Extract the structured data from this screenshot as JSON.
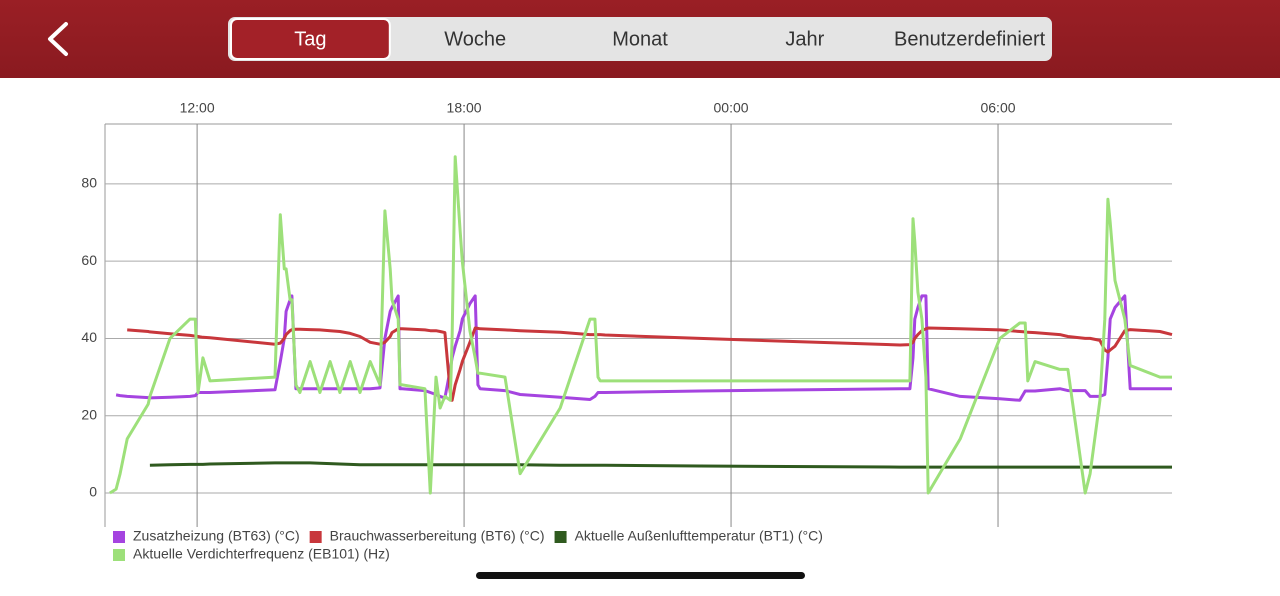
{
  "header": {
    "tabs": [
      {
        "label": "Tag",
        "selected": true
      },
      {
        "label": "Woche",
        "selected": false
      },
      {
        "label": "Monat",
        "selected": false
      },
      {
        "label": "Jahr",
        "selected": false
      },
      {
        "label": "Benutzerdefiniert",
        "selected": false
      }
    ]
  },
  "chart_data": {
    "type": "line",
    "grid": true,
    "legend": "bottom-left",
    "x": [
      10.04,
      10.18,
      10.27,
      10.43,
      10.9,
      10.94,
      11.39,
      11.84,
      11.96,
      12.02,
      12.07,
      12.13,
      12.29,
      13.75,
      13.87,
      13.96,
      14.0,
      14.09,
      14.13,
      14.22,
      14.31,
      14.54,
      14.76,
      14.99,
      15.21,
      15.44,
      15.66,
      15.89,
      16.11,
      16.22,
      16.34,
      16.38,
      16.52,
      16.56,
      16.61,
      17.12,
      17.24,
      17.37,
      17.46,
      17.57,
      17.69,
      17.73,
      17.8,
      17.91,
      17.96,
      18.13,
      18.25,
      18.31,
      18.36,
      18.92,
      19.26,
      20.16,
      20.83,
      20.94,
      21.01,
      21.06,
      21.17,
      23.3,
      27.8,
      28.02,
      28.09,
      28.13,
      28.2,
      28.29,
      28.38,
      28.43,
      29.15,
      30.04,
      30.49,
      30.61,
      30.67,
      30.83,
      31.39,
      31.57,
      31.96,
      32.07,
      32.29,
      32.4,
      32.47,
      32.52,
      32.63,
      32.85,
      32.97,
      33.64,
      33.91
    ],
    "xlim": [
      9.93,
      33.91
    ],
    "xticks": [
      {
        "value": 12,
        "label": "12:00"
      },
      {
        "value": 18,
        "label": "18:00"
      },
      {
        "value": 24,
        "label": "00:00"
      },
      {
        "value": 30,
        "label": "06:00"
      }
    ],
    "ylim": [
      -8.8,
      95.5
    ],
    "yticks": [
      0,
      20,
      40,
      60,
      80
    ],
    "series": [
      {
        "name": "Zusatzheizung (BT63) (°C)",
        "color": "#a544e0",
        "values": [
          null,
          25.4,
          25.2,
          25,
          24.7,
          24.6,
          24.8,
          25,
          25.2,
          26,
          26,
          26,
          26,
          26.7,
          34,
          40,
          47,
          50,
          51,
          27,
          27,
          27,
          27,
          27,
          27,
          27,
          27,
          27,
          27.2,
          40,
          47,
          48,
          51,
          27,
          27,
          26.5,
          26,
          25.5,
          25,
          24.6,
          32,
          35,
          38,
          42,
          45,
          49,
          51,
          28,
          27,
          26.5,
          25.5,
          24.8,
          24.2,
          25,
          26,
          26,
          26,
          26.4,
          27,
          27,
          35,
          45,
          48,
          51,
          51,
          27,
          25,
          24.4,
          24,
          26.4,
          26.4,
          26.4,
          27,
          26.5,
          26.5,
          25,
          25,
          25.5,
          35,
          45,
          48,
          51,
          27,
          27,
          27
        ]
      },
      {
        "name": "Brauchwasserbereitung (BT6) (°C)",
        "color": "#c8373c",
        "values": [
          null,
          null,
          null,
          42.2,
          41.8,
          41.7,
          41.2,
          40.8,
          40.6,
          40.5,
          40.4,
          40.3,
          40.2,
          38.5,
          38.8,
          40,
          41,
          42,
          42.3,
          42.4,
          42.4,
          42.3,
          42.2,
          42,
          41.8,
          41.3,
          40.5,
          39,
          38.5,
          39,
          40.5,
          41.5,
          42.5,
          42.5,
          42.5,
          42.2,
          42,
          42,
          41.8,
          41.5,
          26,
          24,
          28,
          32,
          34,
          39,
          42.7,
          42.6,
          42.5,
          42.2,
          42,
          41.6,
          41,
          41,
          41,
          41,
          40.9,
          40,
          38.3,
          38.4,
          39,
          40,
          41,
          42,
          42.5,
          42.7,
          42.5,
          42.2,
          41.8,
          41.7,
          41.6,
          41.5,
          41,
          40.5,
          40,
          40,
          39.5,
          37,
          36.5,
          37,
          38,
          42,
          42.3,
          41.8,
          41
        ]
      },
      {
        "name": "Aktuelle Außenlufttemperatur (BT1) (°C)",
        "color": "#2f5a1f",
        "values": [
          null,
          null,
          null,
          null,
          null,
          7.2,
          7.3,
          7.4,
          7.4,
          7.4,
          7.4,
          7.4,
          7.5,
          7.8,
          7.8,
          7.8,
          7.8,
          7.8,
          7.8,
          7.8,
          7.8,
          7.8,
          7.7,
          7.6,
          7.5,
          7.4,
          7.3,
          7.3,
          7.3,
          7.3,
          7.3,
          7.3,
          7.3,
          7.3,
          7.3,
          7.3,
          7.3,
          7.3,
          7.3,
          7.3,
          7.3,
          7.3,
          7.3,
          7.3,
          7.3,
          7.3,
          7.3,
          7.3,
          7.3,
          7.3,
          7.3,
          7.2,
          7.2,
          7.2,
          7.2,
          7.2,
          7.2,
          7,
          6.7,
          6.7,
          6.7,
          6.7,
          6.7,
          6.7,
          6.7,
          6.7,
          6.7,
          6.7,
          6.7,
          6.7,
          6.7,
          6.7,
          6.7,
          6.7,
          6.7,
          6.7,
          6.7,
          6.7,
          6.7,
          6.7,
          6.7,
          6.7,
          6.7,
          6.7,
          6.7
        ]
      },
      {
        "name": "Aktuelle Verdichterfrequenz (EB101) (Hz)",
        "color": "#9de07a",
        "values": [
          0,
          1,
          5,
          14,
          23,
          25,
          40,
          45,
          45,
          26,
          30,
          35,
          29,
          30,
          72,
          58,
          58,
          50,
          50,
          28,
          26,
          34,
          26,
          34,
          26,
          34,
          26,
          34,
          28,
          73,
          58,
          50,
          45,
          28,
          28,
          27,
          0,
          30,
          22,
          25,
          24,
          40,
          87,
          68,
          60,
          42,
          35,
          31,
          31,
          30,
          5,
          22,
          45,
          45,
          30,
          29,
          29,
          29,
          29,
          29,
          71,
          65,
          52,
          45,
          30,
          0,
          14,
          40,
          44,
          44,
          29,
          34,
          32,
          32,
          0,
          5,
          24,
          45,
          76,
          70,
          55,
          45,
          33,
          30,
          30
        ]
      }
    ]
  }
}
